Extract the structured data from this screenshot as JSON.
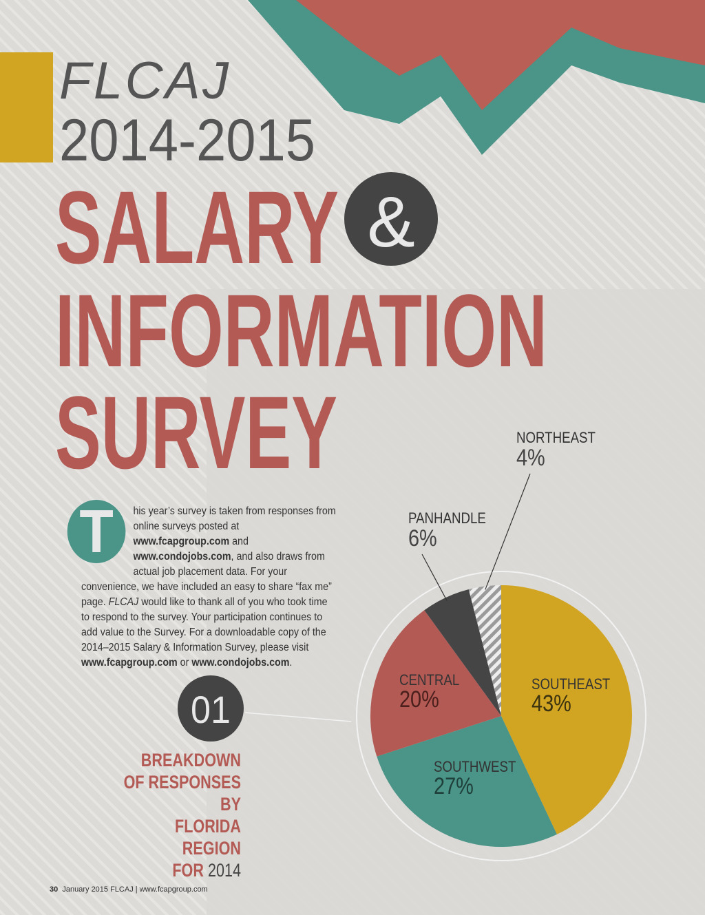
{
  "header": {
    "brand": "FLCAJ",
    "years": "2014-2015",
    "line1": "SALARY",
    "ampersand": "&",
    "line2": "INFORMATION",
    "line3": "SURVEY"
  },
  "body": {
    "drop_cap": "T",
    "segments": [
      "his year’s survey is taken from responses from online surveys posted at ",
      "www.fcapgroup.com",
      " and ",
      "www.condojobs.com",
      ", and also draws from actual job placement data. For your convenience, we have included an easy to share “fax me” page. ",
      "FLCAJ",
      " would like to thank all of you who took time to respond to the survey. Your participation continues to add value to the Survey. For a downloadable copy of the 2014–2015 Salary & Information Survey, please visit ",
      "www.fcapgroup.com",
      " or ",
      "www.condojobs.com",
      "."
    ]
  },
  "figure": {
    "number": "01",
    "caption_lines": [
      "BREAKDOWN",
      "OF RESPONSES BY",
      "FLORIDA REGION",
      "FOR"
    ],
    "caption_year": "2014"
  },
  "chart_data": {
    "type": "pie",
    "categories": [
      "SOUTHEAST",
      "SOUTHWEST",
      "CENTRAL",
      "PANHANDLE",
      "NORTHEAST"
    ],
    "values": [
      43,
      27,
      20,
      6,
      4
    ],
    "value_labels": [
      "43%",
      "27%",
      "20%",
      "6%",
      "4%"
    ],
    "colors": [
      "#d1a422",
      "#4a9488",
      "#b35a55",
      "#454545",
      "#9a9a9a"
    ]
  },
  "footer": {
    "page": "30",
    "text": "January 2015  FLCAJ  |  www.fcapgroup.com"
  }
}
